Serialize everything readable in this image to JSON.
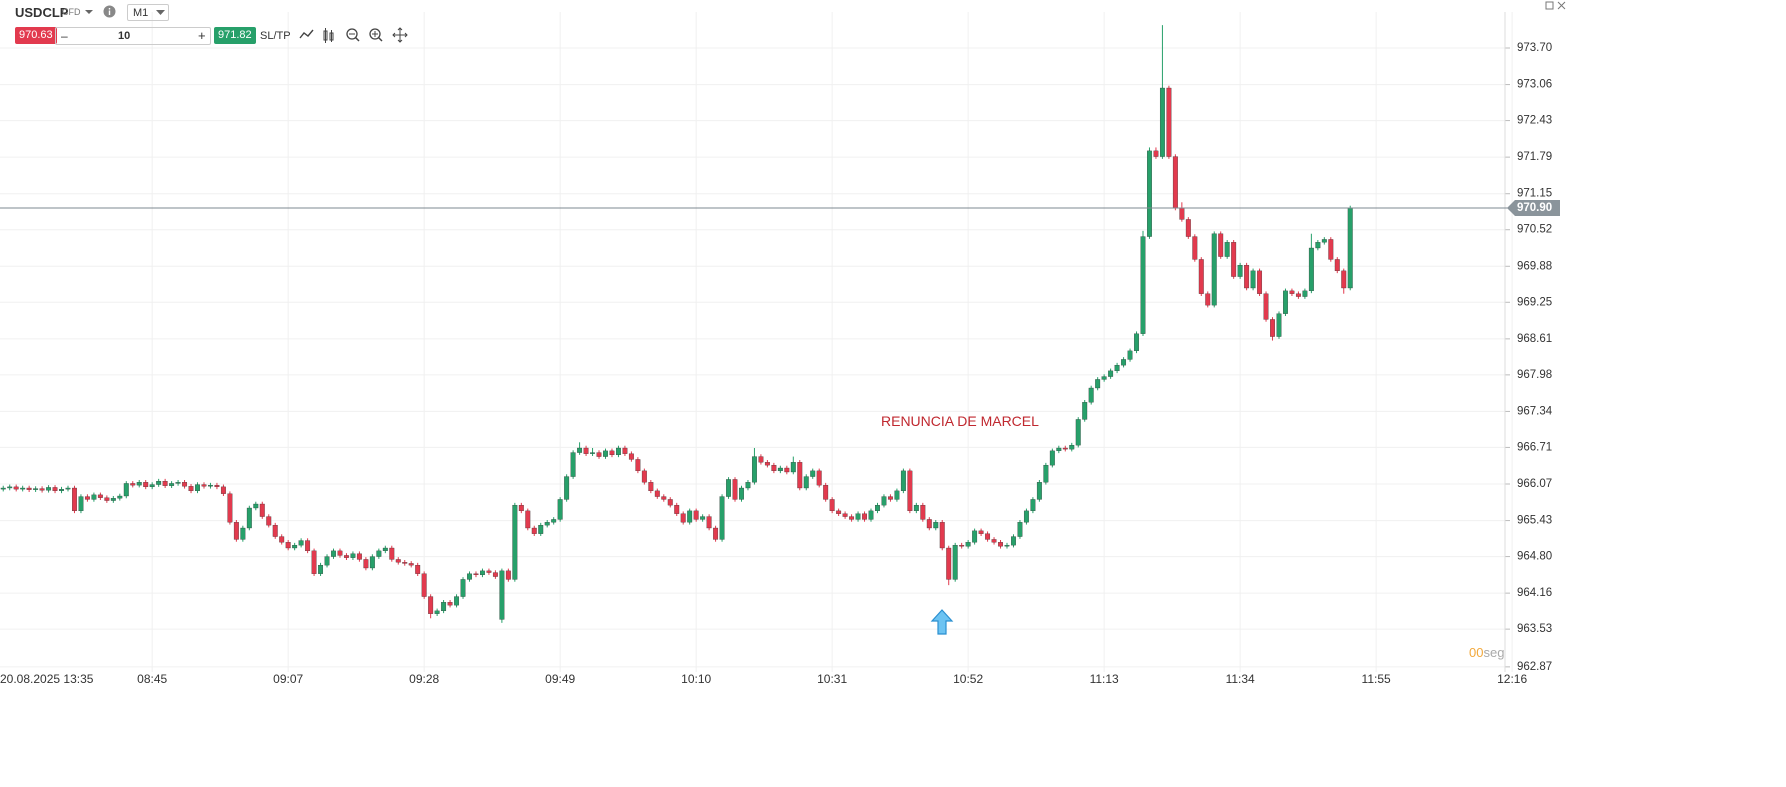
{
  "header": {
    "symbol": "USDCLP",
    "symbol_type": "CFD",
    "timeframe": "M1",
    "sell_price": "970.63",
    "quantity": "10",
    "minus": "–",
    "plus": "+",
    "buy_price": "971.82",
    "sltp": "SL/TP"
  },
  "countdown": "00",
  "countdown_unit": "seg",
  "chart_data": {
    "type": "candlestick",
    "annotation": "RENUNCIA DE MARCEL",
    "up_color": "#27a06a",
    "down_color": "#e23a4e",
    "grid": true,
    "last_price": {
      "value": 970.9,
      "label": "970.90"
    },
    "ylim": [
      962.78,
      974.54
    ],
    "yticks": [
      {
        "value": 973.7,
        "label": "973.70"
      },
      973.06,
      972.43,
      971.79,
      971.15,
      970.52,
      969.88,
      969.25,
      968.61,
      967.98,
      967.34,
      966.71,
      966.07,
      965.43,
      {
        "value": 964.8,
        "label": "964.80"
      },
      964.16,
      963.53,
      962.87
    ],
    "xlim": [
      -0.5,
      231.9
    ],
    "xticks": [
      {
        "value": 0,
        "label": "20.08.2025 13:35"
      },
      {
        "value": 23,
        "label": "08:45"
      },
      {
        "value": 44,
        "label": "09:07"
      },
      {
        "value": 65,
        "label": "09:28"
      },
      {
        "value": 86,
        "label": "09:49"
      },
      {
        "value": 107,
        "label": "10:10"
      },
      {
        "value": 128,
        "label": "10:31"
      },
      {
        "value": 149,
        "label": "10:52"
      },
      {
        "value": 170,
        "label": "11:13"
      },
      {
        "value": 191,
        "label": "11:34"
      },
      {
        "value": 212,
        "label": "11:55"
      },
      {
        "value": 233,
        "label": "12:16"
      }
    ],
    "open": [
      965.98,
      966.0,
      966.02,
      965.98,
      966.0,
      965.97,
      965.99,
      965.96,
      966.01,
      965.95,
      965.98,
      966.0,
      965.6,
      965.85,
      965.8,
      965.88,
      965.83,
      965.78,
      965.82,
      965.86,
      966.08,
      966.05,
      966.1,
      966.02,
      966.06,
      966.12,
      966.04,
      966.08,
      966.1,
      966.03,
      965.95,
      966.06,
      966.03,
      966.05,
      966.02,
      965.9,
      965.4,
      965.1,
      965.3,
      965.65,
      965.72,
      965.5,
      965.35,
      965.15,
      965.05,
      964.95,
      965.0,
      965.08,
      964.9,
      964.5,
      964.65,
      964.8,
      964.9,
      964.82,
      964.78,
      964.85,
      964.75,
      964.6,
      964.8,
      964.9,
      964.95,
      964.75,
      964.7,
      964.68,
      964.65,
      964.5,
      964.1,
      963.8,
      963.85,
      964.0,
      963.95,
      964.1,
      964.4,
      964.5,
      964.48,
      964.55,
      964.52,
      963.7,
      964.55,
      964.4,
      965.7,
      965.6,
      965.3,
      965.2,
      965.35,
      965.4,
      965.45,
      965.8,
      966.2,
      966.62,
      966.7,
      966.6,
      966.62,
      966.55,
      966.65,
      966.58,
      966.7,
      966.6,
      966.5,
      966.3,
      966.1,
      965.95,
      965.85,
      965.8,
      965.7,
      965.55,
      965.4,
      965.6,
      965.45,
      965.5,
      965.3,
      965.1,
      965.85,
      966.15,
      965.8,
      966.0,
      966.1,
      966.55,
      966.45,
      966.4,
      966.3,
      966.35,
      966.28,
      966.45,
      966.0,
      966.2,
      966.3,
      966.05,
      965.8,
      965.6,
      965.55,
      965.5,
      965.45,
      965.55,
      965.45,
      965.6,
      965.7,
      965.85,
      965.8,
      965.95,
      966.3,
      965.6,
      965.7,
      965.45,
      965.3,
      965.4,
      964.95,
      964.4,
      965.0,
      964.98,
      965.05,
      965.25,
      965.2,
      965.1,
      965.05,
      964.98,
      965.0,
      965.15,
      965.4,
      965.6,
      965.8,
      966.1,
      966.4,
      966.65,
      966.7,
      966.68,
      966.75,
      967.2,
      967.5,
      967.75,
      967.9,
      967.95,
      968.05,
      968.15,
      968.25,
      968.4,
      968.7,
      970.4,
      971.9,
      971.8,
      973.0,
      971.8,
      970.9,
      970.7,
      970.4,
      970.0,
      969.4,
      969.2,
      970.45,
      970.05,
      970.3,
      969.7,
      969.9,
      969.5,
      969.8,
      969.4,
      968.95,
      968.65,
      969.05,
      969.45,
      969.4,
      969.35,
      969.45,
      970.2,
      970.3,
      970.35,
      970.0,
      969.8,
      969.5
    ],
    "high": [
      966.04,
      966.06,
      966.06,
      966.04,
      966.04,
      966.03,
      966.03,
      966.05,
      966.05,
      966.02,
      966.04,
      966.04,
      965.89,
      965.89,
      965.92,
      965.92,
      965.87,
      965.86,
      965.9,
      966.12,
      966.12,
      966.14,
      966.14,
      966.1,
      966.16,
      966.16,
      966.12,
      966.14,
      966.14,
      966.07,
      966.1,
      966.1,
      966.09,
      966.09,
      966.06,
      965.94,
      965.44,
      965.34,
      965.69,
      965.76,
      965.76,
      965.54,
      965.39,
      965.19,
      965.09,
      965.04,
      965.12,
      965.12,
      964.94,
      964.69,
      964.84,
      964.94,
      964.94,
      964.86,
      964.89,
      964.89,
      964.79,
      964.84,
      964.94,
      964.99,
      964.99,
      964.79,
      964.74,
      964.72,
      964.69,
      964.54,
      964.14,
      963.89,
      964.04,
      964.04,
      964.14,
      964.44,
      964.54,
      964.54,
      964.59,
      964.59,
      964.56,
      964.59,
      964.59,
      965.74,
      965.74,
      965.64,
      965.34,
      965.39,
      965.44,
      965.49,
      965.84,
      966.24,
      966.66,
      966.8,
      966.74,
      966.7,
      966.66,
      966.69,
      966.69,
      966.74,
      966.74,
      966.64,
      966.54,
      966.34,
      966.14,
      965.99,
      965.89,
      965.84,
      965.74,
      965.59,
      965.64,
      965.64,
      965.54,
      965.54,
      965.34,
      965.89,
      966.19,
      966.19,
      966.04,
      966.14,
      966.7,
      966.59,
      966.49,
      966.44,
      966.39,
      966.39,
      966.55,
      966.49,
      966.24,
      966.34,
      966.34,
      966.09,
      965.84,
      965.64,
      965.59,
      965.54,
      965.59,
      965.59,
      965.64,
      965.74,
      965.89,
      965.89,
      965.99,
      966.34,
      966.34,
      965.74,
      965.74,
      965.49,
      965.44,
      965.44,
      964.99,
      965.04,
      965.04,
      965.09,
      965.29,
      965.29,
      965.24,
      965.14,
      965.09,
      965.04,
      965.19,
      965.44,
      965.64,
      965.84,
      966.14,
      966.44,
      966.69,
      966.74,
      966.74,
      966.79,
      967.24,
      967.54,
      967.79,
      967.94,
      967.99,
      968.09,
      968.19,
      968.29,
      968.44,
      968.74,
      970.5,
      971.96,
      971.96,
      974.1,
      973.04,
      971.84,
      971.0,
      970.74,
      970.44,
      970.04,
      969.44,
      970.49,
      970.49,
      970.34,
      970.34,
      969.94,
      969.94,
      969.84,
      969.84,
      969.44,
      968.99,
      969.09,
      969.49,
      969.49,
      969.44,
      969.49,
      970.45,
      970.34,
      970.39,
      970.39,
      970.04,
      969.84,
      970.94
    ],
    "low": [
      965.94,
      965.96,
      965.94,
      965.94,
      965.93,
      965.93,
      965.92,
      965.92,
      965.91,
      965.91,
      965.94,
      965.56,
      965.56,
      965.76,
      965.76,
      965.79,
      965.74,
      965.74,
      965.78,
      965.82,
      966.01,
      966.01,
      965.98,
      965.98,
      966.02,
      966.0,
      966.0,
      966.04,
      965.99,
      965.91,
      965.91,
      965.99,
      965.99,
      965.98,
      965.86,
      965.36,
      965.06,
      965.06,
      965.26,
      965.61,
      965.46,
      965.31,
      965.11,
      965.01,
      964.91,
      964.91,
      964.96,
      964.86,
      964.46,
      964.46,
      964.61,
      964.76,
      964.78,
      964.74,
      964.74,
      964.71,
      964.56,
      964.56,
      964.76,
      964.86,
      964.71,
      964.66,
      964.64,
      964.61,
      964.46,
      964.06,
      963.72,
      963.76,
      963.81,
      963.91,
      963.91,
      964.06,
      964.36,
      964.44,
      964.44,
      964.48,
      964.41,
      963.64,
      964.36,
      964.36,
      965.56,
      965.26,
      965.16,
      965.16,
      965.31,
      965.36,
      965.41,
      965.76,
      966.16,
      966.58,
      966.56,
      966.56,
      966.51,
      966.51,
      966.54,
      966.54,
      966.56,
      966.46,
      966.26,
      966.06,
      965.91,
      965.81,
      965.76,
      965.66,
      965.51,
      965.36,
      965.36,
      965.41,
      965.41,
      965.26,
      965.06,
      965.06,
      965.81,
      965.76,
      965.76,
      965.96,
      966.06,
      966.41,
      966.36,
      966.26,
      966.26,
      966.24,
      966.24,
      965.96,
      965.96,
      966.16,
      966.01,
      965.76,
      965.56,
      965.51,
      965.46,
      965.41,
      965.41,
      965.41,
      965.41,
      965.56,
      965.66,
      965.76,
      965.76,
      965.91,
      965.56,
      965.56,
      965.41,
      965.26,
      965.26,
      964.91,
      964.3,
      964.36,
      964.94,
      964.94,
      965.01,
      965.16,
      965.06,
      965.01,
      964.94,
      964.94,
      964.96,
      965.11,
      965.36,
      965.56,
      965.76,
      966.06,
      966.36,
      966.61,
      966.64,
      966.64,
      966.71,
      967.16,
      967.46,
      967.71,
      967.86,
      967.91,
      968.01,
      968.11,
      968.21,
      968.36,
      968.66,
      970.36,
      971.76,
      971.76,
      971.76,
      970.86,
      970.66,
      970.36,
      969.96,
      969.36,
      969.16,
      969.16,
      970.01,
      970.01,
      969.66,
      969.66,
      969.46,
      969.46,
      969.36,
      968.91,
      968.58,
      968.61,
      969.01,
      969.36,
      969.31,
      969.31,
      969.41,
      970.16,
      970.26,
      969.96,
      969.76,
      969.4,
      969.46
    ],
    "close": [
      966.0,
      966.02,
      965.98,
      966.0,
      965.97,
      965.99,
      965.96,
      966.01,
      965.95,
      965.98,
      966.0,
      965.6,
      965.85,
      965.8,
      965.88,
      965.83,
      965.78,
      965.82,
      965.86,
      966.08,
      966.05,
      966.1,
      966.02,
      966.06,
      966.12,
      966.04,
      966.08,
      966.1,
      966.03,
      965.95,
      966.06,
      966.03,
      966.05,
      966.02,
      965.9,
      965.4,
      965.1,
      965.3,
      965.65,
      965.72,
      965.5,
      965.35,
      965.15,
      965.05,
      964.95,
      965.0,
      965.08,
      964.9,
      964.5,
      964.65,
      964.8,
      964.9,
      964.82,
      964.78,
      964.85,
      964.75,
      964.6,
      964.8,
      964.9,
      964.95,
      964.75,
      964.7,
      964.68,
      964.65,
      964.5,
      964.1,
      963.8,
      963.85,
      964.0,
      963.95,
      964.1,
      964.4,
      964.5,
      964.48,
      964.55,
      964.52,
      964.45,
      964.55,
      964.4,
      965.7,
      965.6,
      965.3,
      965.2,
      965.35,
      965.4,
      965.45,
      965.8,
      966.2,
      966.62,
      966.7,
      966.6,
      966.62,
      966.55,
      966.65,
      966.58,
      966.7,
      966.6,
      966.5,
      966.3,
      966.1,
      965.95,
      965.85,
      965.8,
      965.7,
      965.55,
      965.4,
      965.6,
      965.45,
      965.5,
      965.3,
      965.1,
      965.85,
      966.15,
      965.8,
      966.0,
      966.1,
      966.55,
      966.45,
      966.4,
      966.3,
      966.35,
      966.28,
      966.45,
      966.0,
      966.2,
      966.3,
      966.05,
      965.8,
      965.6,
      965.55,
      965.5,
      965.45,
      965.55,
      965.45,
      965.6,
      965.7,
      965.85,
      965.8,
      965.95,
      966.3,
      965.6,
      965.7,
      965.45,
      965.3,
      965.4,
      964.95,
      964.4,
      965.0,
      964.98,
      965.05,
      965.25,
      965.2,
      965.1,
      965.05,
      964.98,
      965.0,
      965.15,
      965.4,
      965.6,
      965.8,
      966.1,
      966.4,
      966.65,
      966.7,
      966.68,
      966.75,
      967.2,
      967.5,
      967.75,
      967.9,
      967.95,
      968.05,
      968.15,
      968.25,
      968.4,
      968.7,
      970.4,
      971.9,
      971.8,
      973.0,
      971.8,
      970.9,
      970.7,
      970.4,
      970.0,
      969.4,
      969.2,
      970.45,
      970.05,
      970.3,
      969.7,
      969.9,
      969.5,
      969.8,
      969.4,
      968.95,
      968.65,
      969.05,
      969.45,
      969.4,
      969.35,
      969.45,
      970.2,
      970.3,
      970.35,
      970.0,
      969.8,
      969.5,
      970.9
    ]
  }
}
